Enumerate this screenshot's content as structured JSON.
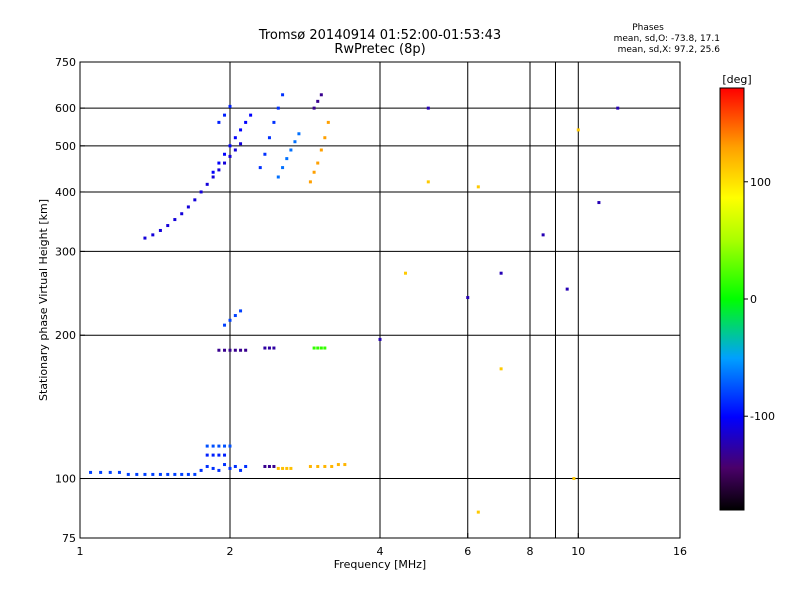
{
  "header": {
    "title_line1": "Tromsø 20140914 01:52:00-01:53:43",
    "title_line2": "RwPretec (8p)"
  },
  "phases_box": {
    "heading": "Phases",
    "line_o": "mean, sd,O: -73.8, 17.1",
    "line_x": "mean, sd,X:  97.2, 25.6"
  },
  "chart_data": {
    "type": "scatter",
    "title": "Tromsø 20140914 01:52:00-01:53:43",
    "subtitle": "RwPretec (8p)",
    "xlabel": "Frequency [MHz]",
    "ylabel": "Stationary phase Virtual Height [km]",
    "xscale": "log",
    "yscale": "log",
    "xlim": [
      1,
      16
    ],
    "ylim": [
      75,
      750
    ],
    "x_ticks": [
      1,
      2,
      4,
      6,
      8,
      10,
      16
    ],
    "x_tick_labels": [
      "1",
      "2",
      "4",
      "6",
      "8",
      "10",
      "16"
    ],
    "x_grid": [
      2,
      4,
      6,
      8,
      9,
      10
    ],
    "y_ticks": [
      75,
      100,
      200,
      300,
      400,
      500,
      600,
      750
    ],
    "y_tick_labels": [
      "75",
      "100",
      "200",
      "300",
      "400",
      "500",
      "600",
      "750"
    ],
    "y_grid": [
      100,
      200,
      300,
      400,
      500,
      600
    ],
    "grid": true,
    "colorbar": {
      "label": "[deg]",
      "min": -180,
      "max": 180,
      "ticks": [
        100,
        0,
        -100
      ],
      "tick_labels": [
        "100",
        "0",
        "-100"
      ]
    },
    "series": [
      {
        "x": [
          1.05,
          1.1,
          1.15,
          1.2,
          1.25,
          1.3,
          1.35,
          1.4,
          1.45,
          1.5,
          1.55,
          1.6,
          1.65,
          1.7
        ],
        "y": [
          103,
          103,
          103,
          103,
          102,
          102,
          102,
          102,
          102,
          102,
          102,
          102,
          102,
          102
        ],
        "phase": -80
      },
      {
        "x": [
          1.75,
          1.8,
          1.85,
          1.9,
          1.95,
          2.0,
          2.05,
          2.1,
          2.15
        ],
        "y": [
          104,
          106,
          105,
          104,
          107,
          105,
          106,
          104,
          106
        ],
        "phase": -85
      },
      {
        "x": [
          1.8,
          1.85,
          1.9,
          1.95,
          2.0
        ],
        "y": [
          117,
          117,
          117,
          117,
          117
        ],
        "phase": -75
      },
      {
        "x": [
          1.8,
          1.85,
          1.9,
          1.95
        ],
        "y": [
          112,
          112,
          112,
          112
        ],
        "phase": -90
      },
      {
        "x": [
          2.35,
          2.4,
          2.45
        ],
        "y": [
          106,
          106,
          106
        ],
        "phase": -130
      },
      {
        "x": [
          2.5,
          2.55,
          2.6,
          2.65
        ],
        "y": [
          105,
          105,
          105,
          105
        ],
        "phase": 115
      },
      {
        "x": [
          2.9,
          3.0,
          3.1,
          3.2,
          3.3,
          3.4
        ],
        "y": [
          106,
          106,
          106,
          106,
          107,
          107
        ],
        "phase": 120
      },
      {
        "x": [
          1.35,
          1.4,
          1.45,
          1.5,
          1.55,
          1.6,
          1.65,
          1.7,
          1.75,
          1.8,
          1.85,
          1.9,
          1.95,
          2.0,
          2.05,
          2.1
        ],
        "y": [
          320,
          325,
          332,
          340,
          350,
          360,
          372,
          385,
          400,
          415,
          430,
          445,
          460,
          475,
          490,
          505
        ],
        "phase": -110
      },
      {
        "x": [
          1.85,
          1.9,
          1.95,
          2.0,
          2.05,
          2.1,
          2.15,
          2.2
        ],
        "y": [
          440,
          460,
          480,
          500,
          520,
          540,
          560,
          580
        ],
        "phase": -100
      },
      {
        "x": [
          1.9,
          1.95,
          2.0
        ],
        "y": [
          560,
          580,
          605
        ],
        "phase": -90
      },
      {
        "x": [
          2.3,
          2.35,
          2.4,
          2.45,
          2.5,
          2.55
        ],
        "y": [
          450,
          480,
          520,
          560,
          600,
          640
        ],
        "phase": -85
      },
      {
        "x": [
          2.5,
          2.55,
          2.6,
          2.65,
          2.7,
          2.75
        ],
        "y": [
          430,
          450,
          470,
          490,
          510,
          530
        ],
        "phase": -65
      },
      {
        "x": [
          2.9,
          2.95,
          3.0,
          3.05,
          3.1,
          3.15
        ],
        "y": [
          420,
          440,
          460,
          490,
          520,
          560
        ],
        "phase": 130
      },
      {
        "x": [
          2.95,
          3.0,
          3.05
        ],
        "y": [
          600,
          620,
          640
        ],
        "phase": -130
      },
      {
        "x": [
          1.9,
          1.95,
          2.0,
          2.05,
          2.1,
          2.15
        ],
        "y": [
          186,
          186,
          186,
          186,
          186,
          186
        ],
        "phase": -130
      },
      {
        "x": [
          2.35,
          2.4,
          2.45
        ],
        "y": [
          188,
          188,
          188
        ],
        "phase": -125
      },
      {
        "x": [
          2.95,
          3.0,
          3.05,
          3.1
        ],
        "y": [
          188,
          188,
          188,
          188
        ],
        "phase": 15
      },
      {
        "x": [
          1.95,
          2.0,
          2.05,
          2.1
        ],
        "y": [
          210,
          215,
          220,
          225
        ],
        "phase": -80
      },
      {
        "x": [
          4.0,
          5.0,
          6.0,
          7.0,
          8.5,
          9.5,
          11.0,
          12.0
        ],
        "y": [
          196,
          600,
          240,
          270,
          325,
          250,
          380,
          600
        ],
        "phase": -120
      },
      {
        "x": [
          4.5,
          5.0,
          6.3,
          6.3,
          7.0,
          9.8,
          10.0
        ],
        "y": [
          270,
          420,
          410,
          85,
          170,
          100,
          540
        ],
        "phase": 110
      }
    ]
  }
}
